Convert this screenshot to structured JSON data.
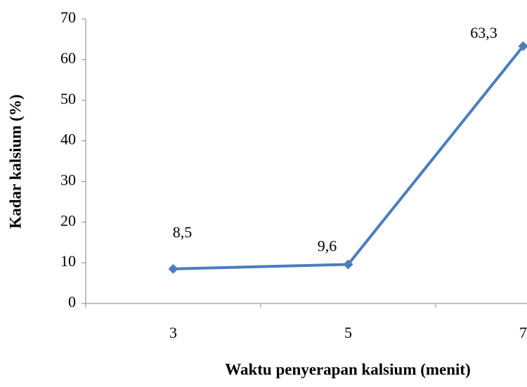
{
  "chart_data": {
    "type": "line",
    "x_label": "Waktu penyerapan kalsium (menit)",
    "y_label": "Kadar kalsium (%)",
    "categories": [
      "3",
      "5",
      "7"
    ],
    "series": [
      {
        "name": "Kadar kalsium",
        "color": "#4a7ebb",
        "values": [
          8.5,
          9.6,
          63.3
        ],
        "value_labels": [
          "8,5",
          "9,6",
          "63,3"
        ]
      }
    ],
    "ylim": [
      0,
      70
    ],
    "yticks": [
      0,
      10,
      20,
      30,
      40,
      50,
      60,
      70
    ],
    "grid": false
  }
}
